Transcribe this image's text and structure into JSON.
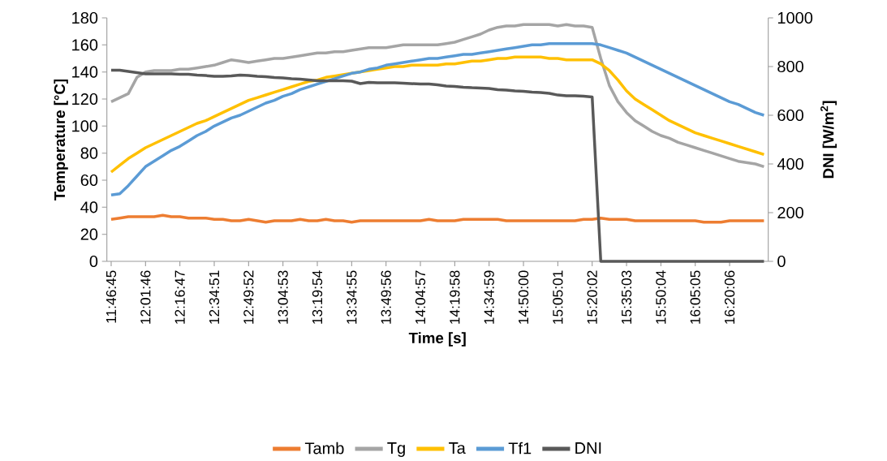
{
  "chart_data": {
    "type": "line",
    "xlabel": "Time [s]",
    "ylabel": "Temperature [°C]",
    "y2label": "DNI [W/m$^{2}$]",
    "categories": [
      "11:46:45",
      null,
      null,
      null,
      "12:01:46",
      null,
      null,
      null,
      "12:16:47",
      null,
      null,
      null,
      "12:34:51",
      null,
      null,
      null,
      "12:49:52",
      null,
      null,
      null,
      "13:04:53",
      null,
      null,
      null,
      "13:19:54",
      null,
      null,
      null,
      "13:34:55",
      null,
      null,
      null,
      "13:49:56",
      null,
      null,
      null,
      "14:04:57",
      null,
      null,
      null,
      "14:19:58",
      null,
      null,
      null,
      "14:34:59",
      null,
      null,
      null,
      "14:50:00",
      null,
      null,
      null,
      "15:05:01",
      null,
      null,
      null,
      "15:20:02",
      null,
      null,
      null,
      "15:35:03",
      null,
      null,
      null,
      "15:50:04",
      null,
      null,
      null,
      "16:05:05",
      null,
      null,
      null,
      "16:20:06",
      null,
      null,
      null,
      null
    ],
    "series": [
      {
        "name": "Tamb",
        "color": "#ed7d31",
        "values": [
          31,
          32,
          33,
          33,
          33,
          33,
          34,
          33,
          33,
          32,
          32,
          32,
          31,
          31,
          30,
          30,
          31,
          30,
          29,
          30,
          30,
          30,
          31,
          30,
          30,
          31,
          30,
          30,
          29,
          30,
          30,
          30,
          30,
          30,
          30,
          30,
          30,
          31,
          30,
          30,
          30,
          31,
          31,
          31,
          31,
          31,
          30,
          30,
          30,
          30,
          30,
          30,
          30,
          30,
          30,
          31,
          31,
          32,
          31,
          31,
          31,
          30,
          30,
          30,
          30,
          30,
          30,
          30,
          30,
          29,
          29,
          29,
          30,
          30,
          30,
          30,
          30
        ]
      },
      {
        "name": "Tg",
        "color": "#a5a5a5",
        "values": [
          118,
          121,
          124,
          136,
          140,
          141,
          141,
          141,
          142,
          142,
          143,
          144,
          145,
          147,
          149,
          148,
          147,
          148,
          149,
          150,
          150,
          151,
          152,
          153,
          154,
          154,
          155,
          155,
          156,
          157,
          158,
          158,
          158,
          159,
          160,
          160,
          160,
          160,
          160,
          161,
          162,
          164,
          166,
          168,
          171,
          173,
          174,
          174,
          175,
          175,
          175,
          175,
          174,
          175,
          174,
          174,
          173,
          150,
          130,
          118,
          110,
          104,
          100,
          96,
          93,
          91,
          88,
          86,
          84,
          82,
          80,
          78,
          76,
          74,
          73,
          72,
          70
        ]
      },
      {
        "name": "Ta",
        "color": "#ffc000",
        "values": [
          66,
          71,
          76,
          80,
          84,
          87,
          90,
          93,
          96,
          99,
          102,
          104,
          107,
          110,
          113,
          116,
          119,
          121,
          123,
          125,
          127,
          129,
          131,
          133,
          134,
          136,
          137,
          138,
          139,
          140,
          141,
          142,
          143,
          144,
          144,
          145,
          145,
          145,
          145,
          146,
          146,
          147,
          148,
          148,
          149,
          150,
          150,
          151,
          151,
          151,
          151,
          150,
          150,
          149,
          149,
          149,
          149,
          146,
          141,
          134,
          126,
          120,
          116,
          112,
          108,
          104,
          101,
          98,
          95,
          93,
          91,
          89,
          87,
          85,
          83,
          81,
          79
        ]
      },
      {
        "name": "Tf1",
        "color": "#5b9bd5",
        "values": [
          49,
          50,
          56,
          63,
          70,
          74,
          78,
          82,
          85,
          89,
          93,
          96,
          100,
          103,
          106,
          108,
          111,
          114,
          117,
          119,
          122,
          124,
          127,
          129,
          131,
          133,
          135,
          137,
          139,
          140,
          142,
          143,
          145,
          146,
          147,
          148,
          149,
          150,
          150,
          151,
          152,
          153,
          153,
          154,
          155,
          156,
          157,
          158,
          159,
          160,
          160,
          161,
          161,
          161,
          161,
          161,
          161,
          160,
          158,
          156,
          154,
          151,
          148,
          145,
          142,
          139,
          136,
          133,
          130,
          127,
          124,
          121,
          118,
          116,
          113,
          110,
          108
        ]
      },
      {
        "name": "DNI",
        "color": "#595959",
        "axis": "y2",
        "values": [
          785,
          785,
          780,
          775,
          770,
          770,
          770,
          770,
          768,
          768,
          765,
          763,
          760,
          760,
          762,
          765,
          763,
          760,
          758,
          755,
          753,
          750,
          748,
          745,
          742,
          742,
          742,
          742,
          740,
          730,
          735,
          733,
          733,
          733,
          732,
          730,
          728,
          728,
          725,
          720,
          718,
          715,
          713,
          712,
          710,
          705,
          703,
          700,
          698,
          695,
          693,
          690,
          683,
          680,
          680,
          678,
          675,
          0,
          0,
          0,
          0,
          0,
          0,
          0,
          0,
          0,
          0,
          0,
          0,
          0,
          0,
          0,
          0,
          0,
          0,
          0,
          0
        ]
      }
    ],
    "ylim": [
      0,
      180
    ],
    "yticks": [
      0,
      20,
      40,
      60,
      80,
      100,
      120,
      140,
      160,
      180
    ],
    "y2lim": [
      0,
      1000
    ],
    "y2ticks": [
      0,
      200,
      400,
      600,
      800,
      1000
    ],
    "legend": "bottom"
  }
}
